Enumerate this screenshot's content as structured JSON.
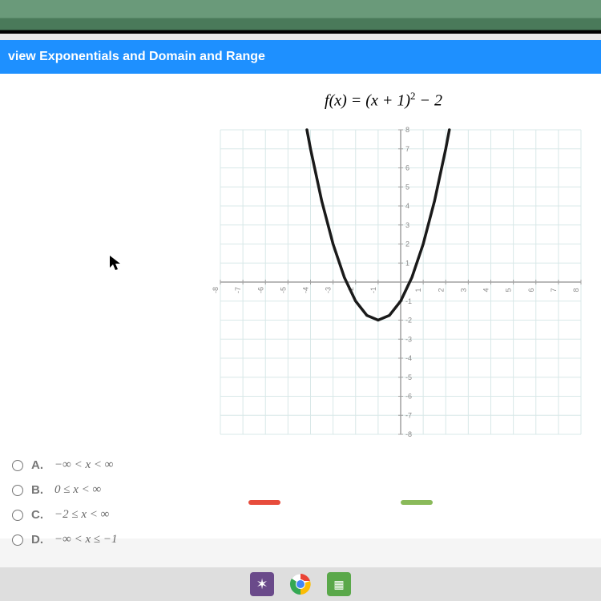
{
  "header": {
    "title": "view Exponentials and Domain and Range"
  },
  "equation": {
    "prefix": "f",
    "variable": "x",
    "expression_open": "(",
    "expression_close": ") = (",
    "inner": " + 1)",
    "exponent": "2",
    "constant": " − 2"
  },
  "chart": {
    "type": "parabola",
    "xlim": [
      -8,
      8
    ],
    "ylim": [
      -8,
      8
    ],
    "xtick_step": 1,
    "ytick_step": 1,
    "grid_color": "#d8e8e8",
    "axis_color": "#a0a0a0",
    "tick_label_color": "#888888",
    "tick_fontsize": 9,
    "background_color": "#ffffff",
    "curve_color": "#1a1a1a",
    "curve_width": 3.5,
    "vertex": [
      -1,
      -2
    ],
    "a": 1,
    "points": [
      [
        -4.16,
        8
      ],
      [
        -4,
        7
      ],
      [
        -3.5,
        4.25
      ],
      [
        -3,
        2
      ],
      [
        -2.5,
        0.25
      ],
      [
        -2,
        -1
      ],
      [
        -1.5,
        -1.75
      ],
      [
        -1,
        -2
      ],
      [
        -0.5,
        -1.75
      ],
      [
        0,
        -1
      ],
      [
        0.5,
        0.25
      ],
      [
        1,
        2
      ],
      [
        1.5,
        4.25
      ],
      [
        2,
        7
      ],
      [
        2.16,
        8
      ]
    ]
  },
  "answers": {
    "options": [
      {
        "letter": "A.",
        "text": "−∞ < x < ∞"
      },
      {
        "letter": "B.",
        "text": "0 ≤ x < ∞"
      },
      {
        "letter": "C.",
        "text": "−2 ≤ x < ∞"
      },
      {
        "letter": "D.",
        "text": "−∞ < x ≤ −1"
      }
    ]
  },
  "taskbar": {
    "icons": [
      "app-icon",
      "chrome-icon",
      "office-icon"
    ]
  }
}
